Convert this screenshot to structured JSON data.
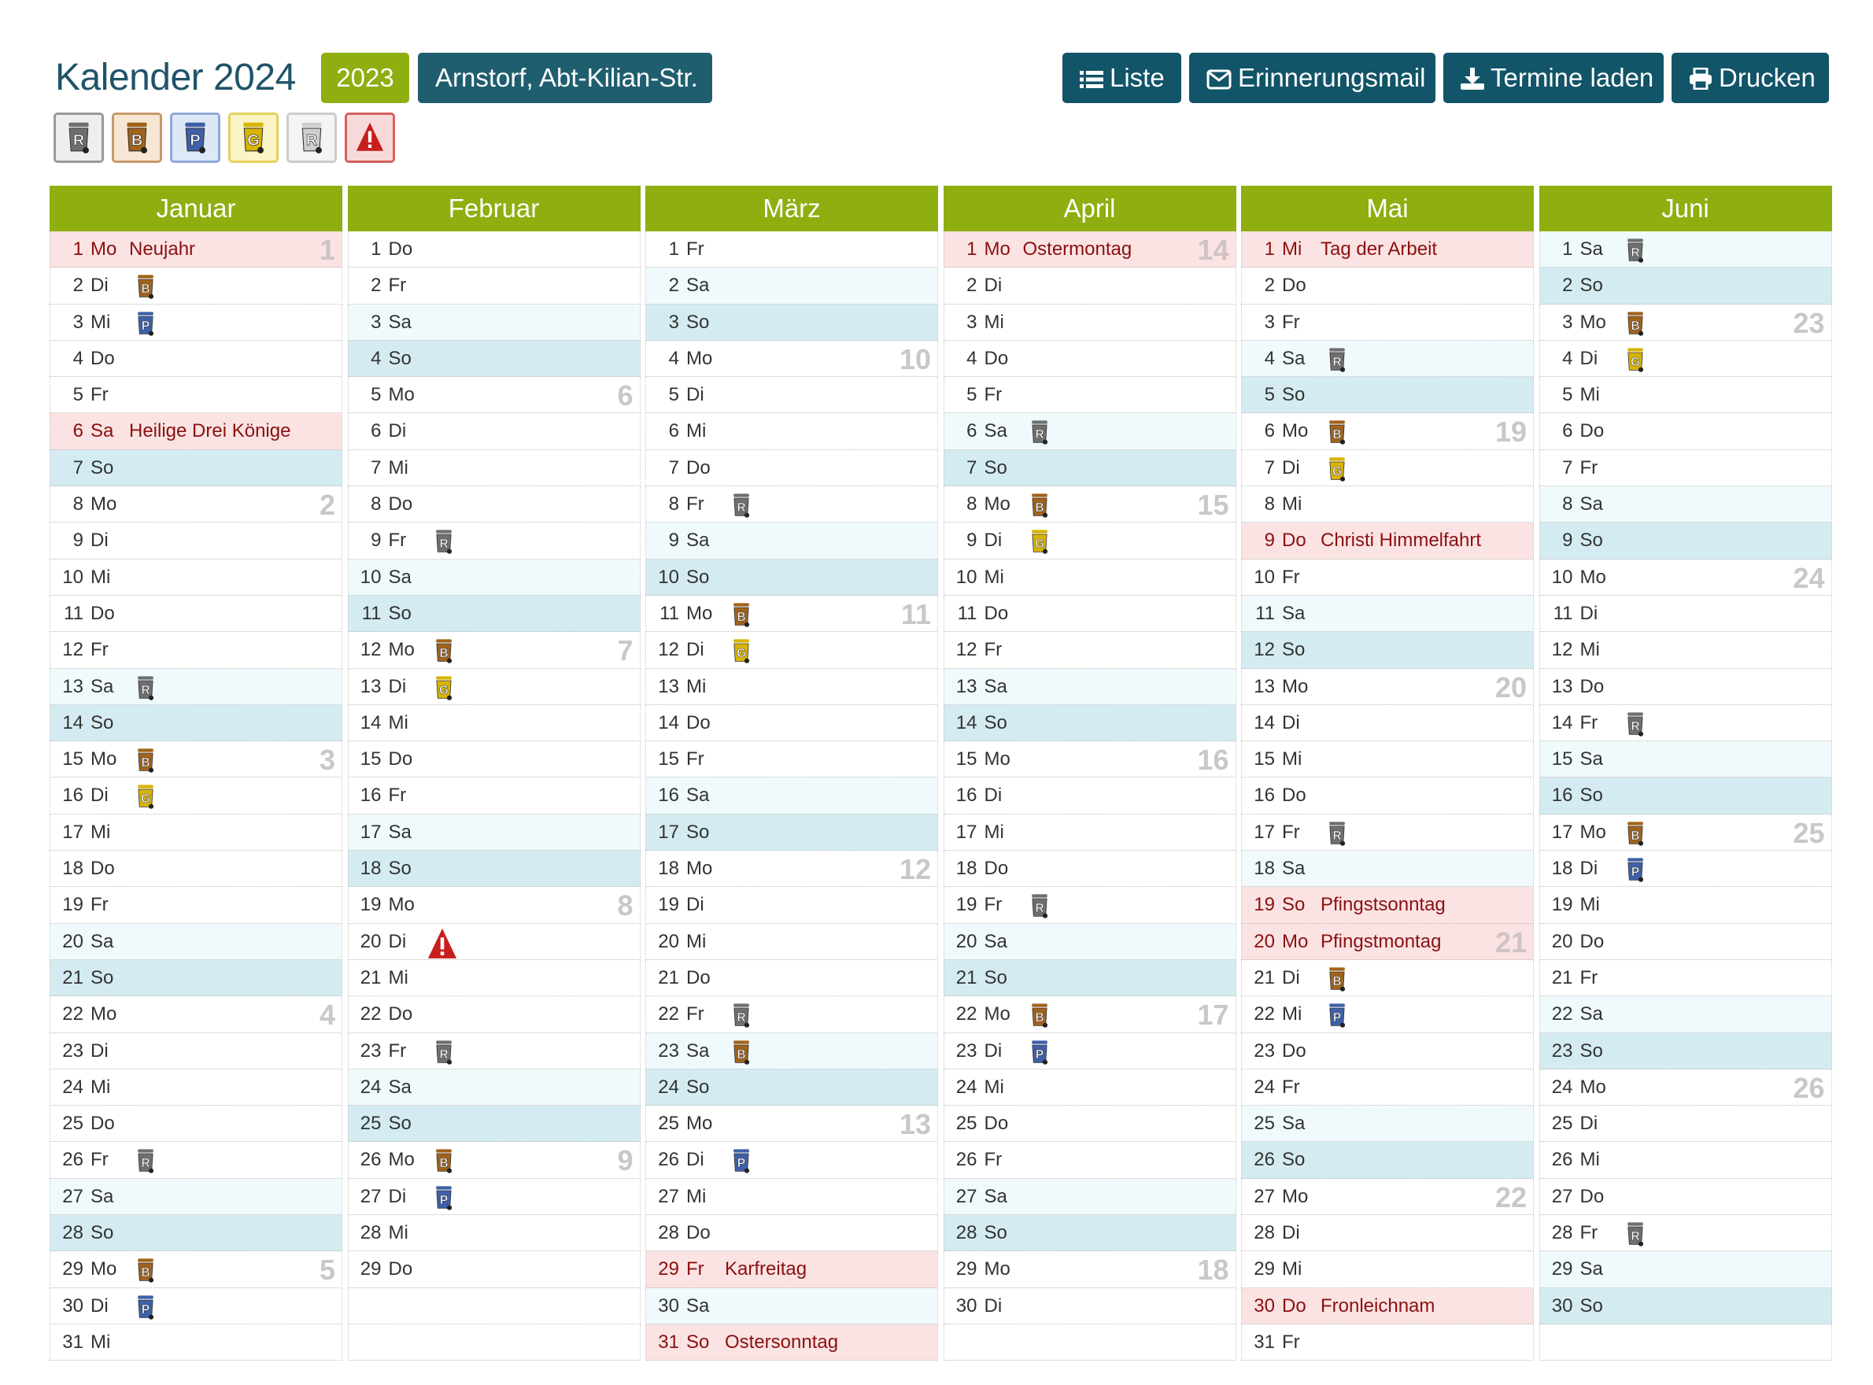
{
  "header": {
    "title": "Kalender 2024",
    "year_button": "2023",
    "location_button": "Arnstorf, Abt-Kilian-Str.",
    "btn_liste": "Liste",
    "btn_mail": "Erinnerungsmail",
    "btn_laden": "Termine laden",
    "btn_drucken": "Drucken"
  },
  "legend": [
    {
      "letter": "R",
      "color": "#6f6f6f",
      "border": "#999999",
      "bg": "#eeeeee",
      "name": "restmuell-icon"
    },
    {
      "letter": "B",
      "color": "#a0631c",
      "border": "#c89a6a",
      "bg": "#f6e6d3",
      "name": "biomuell-icon"
    },
    {
      "letter": "P",
      "color": "#3d60a8",
      "border": "#8fa8d6",
      "bg": "#dde8f6",
      "name": "papier-icon"
    },
    {
      "letter": "G",
      "color": "#d8b400",
      "border": "#e6d25c",
      "bg": "#fbf4c4",
      "name": "gelber-sack-icon"
    },
    {
      "letter": "R",
      "color": "#cfcfcf",
      "border": "#cccccc",
      "bg": "#f4f4f4",
      "name": "restmuell-gross-icon"
    },
    {
      "letter": "!",
      "color": "#c81e1e",
      "border": "#d46060",
      "bg": "#f8d9d9",
      "name": "warning-icon"
    }
  ],
  "icon_colors": {
    "R": "#6f6f6f",
    "B": "#a0631c",
    "P": "#3d60a8",
    "G": "#d8b400",
    "!": "#c81e1e"
  },
  "months": [
    {
      "name": "Januar",
      "days": [
        {
          "d": "1",
          "wd": "Mo",
          "t": "hol",
          "h": "Neujahr",
          "kw": "1"
        },
        {
          "d": "2",
          "wd": "Di",
          "i": "B"
        },
        {
          "d": "3",
          "wd": "Mi",
          "i": "P"
        },
        {
          "d": "4",
          "wd": "Do"
        },
        {
          "d": "5",
          "wd": "Fr"
        },
        {
          "d": "6",
          "wd": "Sa",
          "t": "hol",
          "h": "Heilige Drei Könige"
        },
        {
          "d": "7",
          "wd": "So",
          "t": "so"
        },
        {
          "d": "8",
          "wd": "Mo",
          "kw": "2"
        },
        {
          "d": "9",
          "wd": "Di"
        },
        {
          "d": "10",
          "wd": "Mi"
        },
        {
          "d": "11",
          "wd": "Do"
        },
        {
          "d": "12",
          "wd": "Fr"
        },
        {
          "d": "13",
          "wd": "Sa",
          "t": "sa",
          "i": "R"
        },
        {
          "d": "14",
          "wd": "So",
          "t": "so"
        },
        {
          "d": "15",
          "wd": "Mo",
          "i": "B",
          "kw": "3"
        },
        {
          "d": "16",
          "wd": "Di",
          "i": "G"
        },
        {
          "d": "17",
          "wd": "Mi"
        },
        {
          "d": "18",
          "wd": "Do"
        },
        {
          "d": "19",
          "wd": "Fr"
        },
        {
          "d": "20",
          "wd": "Sa",
          "t": "sa"
        },
        {
          "d": "21",
          "wd": "So",
          "t": "so"
        },
        {
          "d": "22",
          "wd": "Mo",
          "kw": "4"
        },
        {
          "d": "23",
          "wd": "Di"
        },
        {
          "d": "24",
          "wd": "Mi"
        },
        {
          "d": "25",
          "wd": "Do"
        },
        {
          "d": "26",
          "wd": "Fr",
          "i": "R"
        },
        {
          "d": "27",
          "wd": "Sa",
          "t": "sa"
        },
        {
          "d": "28",
          "wd": "So",
          "t": "so"
        },
        {
          "d": "29",
          "wd": "Mo",
          "i": "B",
          "kw": "5"
        },
        {
          "d": "30",
          "wd": "Di",
          "i": "P"
        },
        {
          "d": "31",
          "wd": "Mi"
        }
      ]
    },
    {
      "name": "Februar",
      "days": [
        {
          "d": "1",
          "wd": "Do"
        },
        {
          "d": "2",
          "wd": "Fr"
        },
        {
          "d": "3",
          "wd": "Sa",
          "t": "sa"
        },
        {
          "d": "4",
          "wd": "So",
          "t": "so"
        },
        {
          "d": "5",
          "wd": "Mo",
          "kw": "6"
        },
        {
          "d": "6",
          "wd": "Di"
        },
        {
          "d": "7",
          "wd": "Mi"
        },
        {
          "d": "8",
          "wd": "Do"
        },
        {
          "d": "9",
          "wd": "Fr",
          "i": "R"
        },
        {
          "d": "10",
          "wd": "Sa",
          "t": "sa"
        },
        {
          "d": "11",
          "wd": "So",
          "t": "so"
        },
        {
          "d": "12",
          "wd": "Mo",
          "i": "B",
          "kw": "7"
        },
        {
          "d": "13",
          "wd": "Di",
          "i": "G"
        },
        {
          "d": "14",
          "wd": "Mi"
        },
        {
          "d": "15",
          "wd": "Do"
        },
        {
          "d": "16",
          "wd": "Fr"
        },
        {
          "d": "17",
          "wd": "Sa",
          "t": "sa"
        },
        {
          "d": "18",
          "wd": "So",
          "t": "so"
        },
        {
          "d": "19",
          "wd": "Mo",
          "kw": "8"
        },
        {
          "d": "20",
          "wd": "Di",
          "i": "!"
        },
        {
          "d": "21",
          "wd": "Mi"
        },
        {
          "d": "22",
          "wd": "Do"
        },
        {
          "d": "23",
          "wd": "Fr",
          "i": "R"
        },
        {
          "d": "24",
          "wd": "Sa",
          "t": "sa"
        },
        {
          "d": "25",
          "wd": "So",
          "t": "so"
        },
        {
          "d": "26",
          "wd": "Mo",
          "i": "B",
          "kw": "9"
        },
        {
          "d": "27",
          "wd": "Di",
          "i": "P"
        },
        {
          "d": "28",
          "wd": "Mi"
        },
        {
          "d": "29",
          "wd": "Do"
        },
        {
          "d": "",
          "wd": "",
          "t": "empty"
        },
        {
          "d": "",
          "wd": "",
          "t": "empty"
        }
      ]
    },
    {
      "name": "März",
      "days": [
        {
          "d": "1",
          "wd": "Fr"
        },
        {
          "d": "2",
          "wd": "Sa",
          "t": "sa"
        },
        {
          "d": "3",
          "wd": "So",
          "t": "so"
        },
        {
          "d": "4",
          "wd": "Mo",
          "kw": "10"
        },
        {
          "d": "5",
          "wd": "Di"
        },
        {
          "d": "6",
          "wd": "Mi"
        },
        {
          "d": "7",
          "wd": "Do"
        },
        {
          "d": "8",
          "wd": "Fr",
          "i": "R"
        },
        {
          "d": "9",
          "wd": "Sa",
          "t": "sa"
        },
        {
          "d": "10",
          "wd": "So",
          "t": "so"
        },
        {
          "d": "11",
          "wd": "Mo",
          "i": "B",
          "kw": "11"
        },
        {
          "d": "12",
          "wd": "Di",
          "i": "G"
        },
        {
          "d": "13",
          "wd": "Mi"
        },
        {
          "d": "14",
          "wd": "Do"
        },
        {
          "d": "15",
          "wd": "Fr"
        },
        {
          "d": "16",
          "wd": "Sa",
          "t": "sa"
        },
        {
          "d": "17",
          "wd": "So",
          "t": "so"
        },
        {
          "d": "18",
          "wd": "Mo",
          "kw": "12"
        },
        {
          "d": "19",
          "wd": "Di"
        },
        {
          "d": "20",
          "wd": "Mi"
        },
        {
          "d": "21",
          "wd": "Do"
        },
        {
          "d": "22",
          "wd": "Fr",
          "i": "R"
        },
        {
          "d": "23",
          "wd": "Sa",
          "t": "sa",
          "i": "B"
        },
        {
          "d": "24",
          "wd": "So",
          "t": "so"
        },
        {
          "d": "25",
          "wd": "Mo",
          "kw": "13"
        },
        {
          "d": "26",
          "wd": "Di",
          "i": "P"
        },
        {
          "d": "27",
          "wd": "Mi"
        },
        {
          "d": "28",
          "wd": "Do"
        },
        {
          "d": "29",
          "wd": "Fr",
          "t": "hol",
          "h": "Karfreitag"
        },
        {
          "d": "30",
          "wd": "Sa",
          "t": "sa"
        },
        {
          "d": "31",
          "wd": "So",
          "t": "hol",
          "h": "Ostersonntag"
        }
      ]
    },
    {
      "name": "April",
      "days": [
        {
          "d": "1",
          "wd": "Mo",
          "t": "hol",
          "h": "Ostermontag",
          "kw": "14"
        },
        {
          "d": "2",
          "wd": "Di"
        },
        {
          "d": "3",
          "wd": "Mi"
        },
        {
          "d": "4",
          "wd": "Do"
        },
        {
          "d": "5",
          "wd": "Fr"
        },
        {
          "d": "6",
          "wd": "Sa",
          "t": "sa",
          "i": "R"
        },
        {
          "d": "7",
          "wd": "So",
          "t": "so"
        },
        {
          "d": "8",
          "wd": "Mo",
          "i": "B",
          "kw": "15"
        },
        {
          "d": "9",
          "wd": "Di",
          "i": "G"
        },
        {
          "d": "10",
          "wd": "Mi"
        },
        {
          "d": "11",
          "wd": "Do"
        },
        {
          "d": "12",
          "wd": "Fr"
        },
        {
          "d": "13",
          "wd": "Sa",
          "t": "sa"
        },
        {
          "d": "14",
          "wd": "So",
          "t": "so"
        },
        {
          "d": "15",
          "wd": "Mo",
          "kw": "16"
        },
        {
          "d": "16",
          "wd": "Di"
        },
        {
          "d": "17",
          "wd": "Mi"
        },
        {
          "d": "18",
          "wd": "Do"
        },
        {
          "d": "19",
          "wd": "Fr",
          "i": "R"
        },
        {
          "d": "20",
          "wd": "Sa",
          "t": "sa"
        },
        {
          "d": "21",
          "wd": "So",
          "t": "so"
        },
        {
          "d": "22",
          "wd": "Mo",
          "i": "B",
          "kw": "17"
        },
        {
          "d": "23",
          "wd": "Di",
          "i": "P"
        },
        {
          "d": "24",
          "wd": "Mi"
        },
        {
          "d": "25",
          "wd": "Do"
        },
        {
          "d": "26",
          "wd": "Fr"
        },
        {
          "d": "27",
          "wd": "Sa",
          "t": "sa"
        },
        {
          "d": "28",
          "wd": "So",
          "t": "so"
        },
        {
          "d": "29",
          "wd": "Mo",
          "kw": "18"
        },
        {
          "d": "30",
          "wd": "Di"
        },
        {
          "d": "",
          "wd": "",
          "t": "empty"
        }
      ]
    },
    {
      "name": "Mai",
      "days": [
        {
          "d": "1",
          "wd": "Mi",
          "t": "hol",
          "h": "Tag der Arbeit"
        },
        {
          "d": "2",
          "wd": "Do"
        },
        {
          "d": "3",
          "wd": "Fr"
        },
        {
          "d": "4",
          "wd": "Sa",
          "t": "sa",
          "i": "R"
        },
        {
          "d": "5",
          "wd": "So",
          "t": "so"
        },
        {
          "d": "6",
          "wd": "Mo",
          "i": "B",
          "kw": "19"
        },
        {
          "d": "7",
          "wd": "Di",
          "i": "G"
        },
        {
          "d": "8",
          "wd": "Mi"
        },
        {
          "d": "9",
          "wd": "Do",
          "t": "hol",
          "h": "Christi Himmelfahrt"
        },
        {
          "d": "10",
          "wd": "Fr"
        },
        {
          "d": "11",
          "wd": "Sa",
          "t": "sa"
        },
        {
          "d": "12",
          "wd": "So",
          "t": "so"
        },
        {
          "d": "13",
          "wd": "Mo",
          "kw": "20"
        },
        {
          "d": "14",
          "wd": "Di"
        },
        {
          "d": "15",
          "wd": "Mi"
        },
        {
          "d": "16",
          "wd": "Do"
        },
        {
          "d": "17",
          "wd": "Fr",
          "i": "R"
        },
        {
          "d": "18",
          "wd": "Sa",
          "t": "sa"
        },
        {
          "d": "19",
          "wd": "So",
          "t": "hol",
          "h": "Pfingstsonntag"
        },
        {
          "d": "20",
          "wd": "Mo",
          "t": "hol",
          "h": "Pfingstmontag",
          "kw": "21"
        },
        {
          "d": "21",
          "wd": "Di",
          "i": "B"
        },
        {
          "d": "22",
          "wd": "Mi",
          "i": "P"
        },
        {
          "d": "23",
          "wd": "Do"
        },
        {
          "d": "24",
          "wd": "Fr"
        },
        {
          "d": "25",
          "wd": "Sa",
          "t": "sa"
        },
        {
          "d": "26",
          "wd": "So",
          "t": "so"
        },
        {
          "d": "27",
          "wd": "Mo",
          "kw": "22"
        },
        {
          "d": "28",
          "wd": "Di"
        },
        {
          "d": "29",
          "wd": "Mi"
        },
        {
          "d": "30",
          "wd": "Do",
          "t": "hol",
          "h": "Fronleichnam"
        },
        {
          "d": "31",
          "wd": "Fr"
        }
      ]
    },
    {
      "name": "Juni",
      "days": [
        {
          "d": "1",
          "wd": "Sa",
          "t": "sa",
          "i": "R"
        },
        {
          "d": "2",
          "wd": "So",
          "t": "so"
        },
        {
          "d": "3",
          "wd": "Mo",
          "i": "B",
          "kw": "23"
        },
        {
          "d": "4",
          "wd": "Di",
          "i": "G"
        },
        {
          "d": "5",
          "wd": "Mi"
        },
        {
          "d": "6",
          "wd": "Do"
        },
        {
          "d": "7",
          "wd": "Fr"
        },
        {
          "d": "8",
          "wd": "Sa",
          "t": "sa"
        },
        {
          "d": "9",
          "wd": "So",
          "t": "so"
        },
        {
          "d": "10",
          "wd": "Mo",
          "kw": "24"
        },
        {
          "d": "11",
          "wd": "Di"
        },
        {
          "d": "12",
          "wd": "Mi"
        },
        {
          "d": "13",
          "wd": "Do"
        },
        {
          "d": "14",
          "wd": "Fr",
          "i": "R"
        },
        {
          "d": "15",
          "wd": "Sa",
          "t": "sa"
        },
        {
          "d": "16",
          "wd": "So",
          "t": "so"
        },
        {
          "d": "17",
          "wd": "Mo",
          "i": "B",
          "kw": "25"
        },
        {
          "d": "18",
          "wd": "Di",
          "i": "P"
        },
        {
          "d": "19",
          "wd": "Mi"
        },
        {
          "d": "20",
          "wd": "Do"
        },
        {
          "d": "21",
          "wd": "Fr"
        },
        {
          "d": "22",
          "wd": "Sa",
          "t": "sa"
        },
        {
          "d": "23",
          "wd": "So",
          "t": "so"
        },
        {
          "d": "24",
          "wd": "Mo",
          "kw": "26"
        },
        {
          "d": "25",
          "wd": "Di"
        },
        {
          "d": "26",
          "wd": "Mi"
        },
        {
          "d": "27",
          "wd": "Do"
        },
        {
          "d": "28",
          "wd": "Fr",
          "i": "R"
        },
        {
          "d": "29",
          "wd": "Sa",
          "t": "sa"
        },
        {
          "d": "30",
          "wd": "So",
          "t": "so"
        },
        {
          "d": "",
          "wd": "",
          "t": "empty"
        }
      ]
    }
  ]
}
